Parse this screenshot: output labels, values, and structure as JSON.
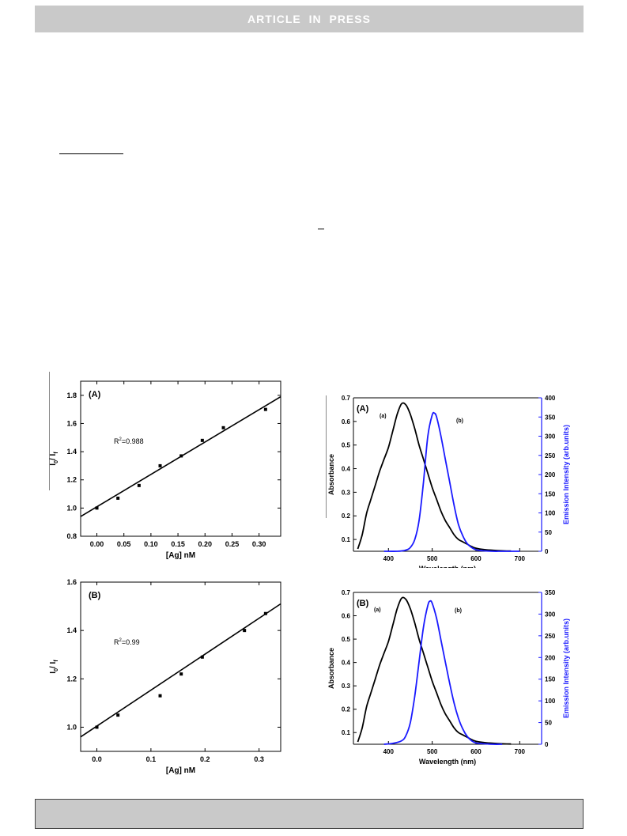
{
  "header": {
    "banner_text": "ARTICLE  IN  PRESS"
  },
  "chart_data": [
    {
      "type": "scatter",
      "panel_label": "(A)",
      "xlabel": "[Ag] nM",
      "ylabel_main": "I",
      "ylabel_sub1": "0",
      "ylabel_mid": "/ I",
      "ylabel_sub2": "f",
      "r2_prefix": "R",
      "r2_sup": "2",
      "r2_value": "=0.988",
      "xlim": [
        -0.03,
        0.34
      ],
      "ylim": [
        0.8,
        1.9
      ],
      "xticks": [
        0.0,
        0.05,
        0.1,
        0.15,
        0.2,
        0.25,
        0.3
      ],
      "xtick_labels": [
        "0.00",
        "0.05",
        "0.10",
        "0.15",
        "0.20",
        "0.25",
        "0.30"
      ],
      "yticks": [
        0.8,
        1.0,
        1.2,
        1.4,
        1.6,
        1.8
      ],
      "ytick_labels": [
        "0.8",
        "1.0",
        "1.2",
        "1.4",
        "1.6",
        "1.8"
      ],
      "x": [
        0.0,
        0.039,
        0.078,
        0.117,
        0.156,
        0.195,
        0.234,
        0.312
      ],
      "y": [
        1.0,
        1.07,
        1.16,
        1.3,
        1.37,
        1.48,
        1.57,
        1.7
      ],
      "fit": {
        "x": [
          -0.03,
          0.34
        ],
        "y": [
          0.94,
          1.79
        ]
      }
    },
    {
      "type": "scatter",
      "panel_label": "(B)",
      "xlabel": "[Ag] nM",
      "ylabel_main": "I",
      "ylabel_sub1": "0",
      "ylabel_mid": "/ I",
      "ylabel_sub2": "f",
      "r2_prefix": "R",
      "r2_sup": "2",
      "r2_value": "=0.99",
      "xlim": [
        -0.03,
        0.34
      ],
      "ylim": [
        0.9,
        1.6
      ],
      "xticks": [
        0.0,
        0.1,
        0.2,
        0.3
      ],
      "xtick_labels": [
        "0.0",
        "0.1",
        "0.2",
        "0.3"
      ],
      "yticks": [
        1.0,
        1.2,
        1.4,
        1.6
      ],
      "ytick_labels": [
        "1.0",
        "1.2",
        "1.4",
        "1.6"
      ],
      "x": [
        0.0,
        0.039,
        0.117,
        0.156,
        0.195,
        0.273,
        0.312
      ],
      "y": [
        1.0,
        1.05,
        1.13,
        1.22,
        1.29,
        1.4,
        1.47
      ],
      "fit": {
        "x": [
          -0.03,
          0.34
        ],
        "y": [
          0.96,
          1.51
        ]
      }
    },
    {
      "type": "line",
      "panel_label": "(A)",
      "xlabel": "Wavelength (nm)",
      "ylabel_left": "Absorbance",
      "ylabel_right": "Emission Intensity (arb.units)",
      "xlim": [
        320,
        750
      ],
      "ylim_left": [
        0.05,
        0.7
      ],
      "ylim_right": [
        0,
        400
      ],
      "xticks": [
        400,
        500,
        600,
        700
      ],
      "xtick_labels": [
        "400",
        "500",
        "600",
        "700"
      ],
      "yticks_left": [
        0.1,
        0.2,
        0.3,
        0.4,
        0.5,
        0.6,
        0.7
      ],
      "ytick_labels_left": [
        "0.1",
        "0.2",
        "0.3",
        "0.4",
        "0.5",
        "0.6",
        "0.7"
      ],
      "yticks_right": [
        0,
        50,
        100,
        150,
        200,
        250,
        300,
        350,
        400
      ],
      "ytick_labels_right": [
        "0",
        "50",
        "100",
        "150",
        "200",
        "250",
        "300",
        "350",
        "400"
      ],
      "series": [
        {
          "name": "(a)",
          "axis": "left",
          "color": "#000000",
          "x": [
            330,
            340,
            350,
            360,
            370,
            380,
            390,
            400,
            410,
            420,
            430,
            440,
            450,
            460,
            470,
            480,
            490,
            500,
            510,
            520,
            530,
            540,
            550,
            560,
            570,
            580,
            590,
            600,
            620,
            640,
            660,
            680
          ],
          "y": [
            0.06,
            0.12,
            0.21,
            0.27,
            0.33,
            0.39,
            0.44,
            0.49,
            0.56,
            0.63,
            0.675,
            0.67,
            0.63,
            0.57,
            0.5,
            0.44,
            0.38,
            0.32,
            0.27,
            0.22,
            0.18,
            0.15,
            0.12,
            0.1,
            0.09,
            0.08,
            0.07,
            0.063,
            0.057,
            0.054,
            0.052,
            0.051
          ]
        },
        {
          "name": "(b)",
          "axis": "right",
          "color": "#1a1aff",
          "x": [
            390,
            420,
            440,
            450,
            460,
            470,
            480,
            490,
            500,
            505,
            510,
            520,
            530,
            540,
            550,
            560,
            570,
            580,
            590,
            600,
            620,
            640,
            660,
            700
          ],
          "y": [
            0,
            0,
            3,
            10,
            30,
            80,
            180,
            300,
            355,
            360,
            350,
            300,
            240,
            180,
            120,
            70,
            40,
            20,
            10,
            4,
            1,
            0,
            0,
            0
          ]
        }
      ]
    },
    {
      "type": "line",
      "panel_label": "(B)",
      "xlabel": "Wavelength (nm)",
      "ylabel_left": "Absorbance",
      "ylabel_right": "Emission Intensity (arb.units)",
      "xlim": [
        320,
        750
      ],
      "ylim_left": [
        0.05,
        0.7
      ],
      "ylim_right": [
        0,
        350
      ],
      "xticks": [
        400,
        500,
        600,
        700
      ],
      "xtick_labels": [
        "400",
        "500",
        "600",
        "700"
      ],
      "yticks_left": [
        0.1,
        0.2,
        0.3,
        0.4,
        0.5,
        0.6,
        0.7
      ],
      "ytick_labels_left": [
        "0.1",
        "0.2",
        "0.3",
        "0.4",
        "0.5",
        "0.6",
        "0.7"
      ],
      "yticks_right": [
        0,
        50,
        100,
        150,
        200,
        250,
        300,
        350
      ],
      "ytick_labels_right": [
        "0",
        "50",
        "100",
        "150",
        "200",
        "250",
        "300",
        "350"
      ],
      "series": [
        {
          "name": "(a)",
          "axis": "left",
          "color": "#000000",
          "x": [
            330,
            340,
            350,
            360,
            370,
            380,
            390,
            400,
            410,
            420,
            430,
            440,
            450,
            460,
            470,
            480,
            490,
            500,
            510,
            520,
            530,
            540,
            550,
            560,
            570,
            580,
            590,
            600,
            620,
            640,
            660,
            680
          ],
          "y": [
            0.06,
            0.12,
            0.21,
            0.27,
            0.33,
            0.39,
            0.44,
            0.49,
            0.56,
            0.63,
            0.675,
            0.67,
            0.63,
            0.57,
            0.5,
            0.44,
            0.38,
            0.32,
            0.27,
            0.22,
            0.18,
            0.15,
            0.12,
            0.1,
            0.09,
            0.08,
            0.07,
            0.063,
            0.057,
            0.054,
            0.052,
            0.051
          ]
        },
        {
          "name": "(b)",
          "axis": "right",
          "color": "#1a1aff",
          "x": [
            390,
            410,
            430,
            440,
            450,
            460,
            470,
            480,
            490,
            495,
            500,
            510,
            520,
            530,
            540,
            550,
            560,
            570,
            580,
            590,
            600,
            620,
            640,
            660
          ],
          "y": [
            0,
            2,
            8,
            20,
            50,
            110,
            190,
            270,
            320,
            330,
            325,
            290,
            240,
            190,
            140,
            95,
            60,
            35,
            18,
            8,
            3,
            1,
            0,
            0
          ]
        }
      ]
    }
  ]
}
